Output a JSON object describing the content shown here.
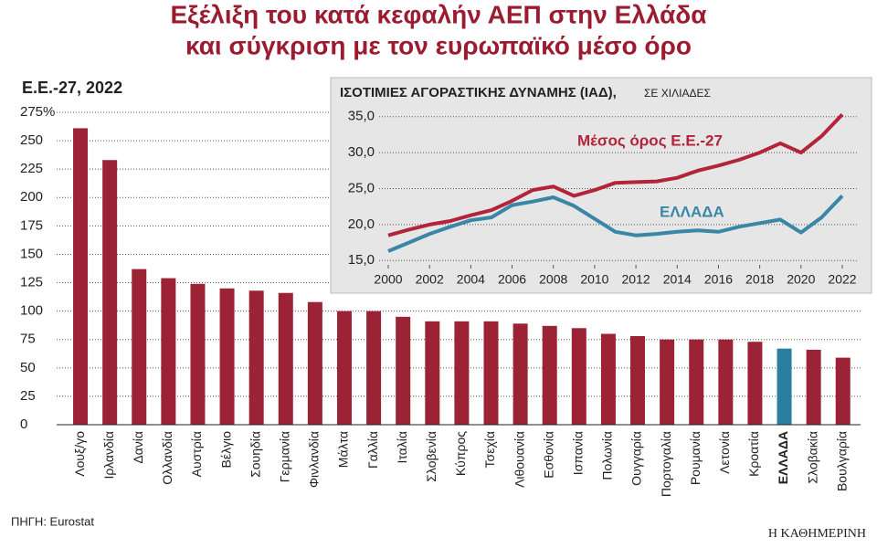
{
  "chart_data": [
    {
      "type": "bar",
      "title": [
        "Εξέλιξη του κατά κεφαλήν ΑΕΠ στην Ελλάδα",
        "και σύγκριση με τον ευρωπαϊκό μέσο όρο"
      ],
      "subtitle": "Ε.Ε.-27, 2022",
      "categories": [
        "Λουξ/γο",
        "Ιρλανδία",
        "Δανία",
        "Ολλανδία",
        "Αυστρία",
        "Βέλγιο",
        "Σουηδία",
        "Γερμανία",
        "Φινλανδία",
        "Μάλτα",
        "Γαλλία",
        "Ιταλία",
        "Σλοβενία",
        "Κύπρος",
        "Τσεχία",
        "Λιθουανία",
        "Εσθονία",
        "Ισπανία",
        "Πολωνία",
        "Ουγγαρία",
        "Πορτογαλία",
        "Ρουμανία",
        "Λετονία",
        "Κροατία",
        "ΕΛΛΑΔΑ",
        "Σλοβακία",
        "Βουλγαρία"
      ],
      "values": [
        261,
        233,
        137,
        129,
        124,
        120,
        118,
        116,
        108,
        100,
        100,
        95,
        91,
        91,
        91,
        89,
        87,
        85,
        80,
        78,
        75,
        75,
        75,
        73,
        67,
        66,
        59
      ],
      "colors": [
        "#9b2335",
        "#9b2335",
        "#9b2335",
        "#9b2335",
        "#9b2335",
        "#9b2335",
        "#9b2335",
        "#9b2335",
        "#9b2335",
        "#9b2335",
        "#9b2335",
        "#9b2335",
        "#9b2335",
        "#9b2335",
        "#9b2335",
        "#9b2335",
        "#9b2335",
        "#9b2335",
        "#9b2335",
        "#9b2335",
        "#9b2335",
        "#9b2335",
        "#9b2335",
        "#9b2335",
        "#2a7fa0",
        "#9b2335",
        "#9b2335"
      ],
      "ylim": [
        0,
        275
      ],
      "yticks": [
        0,
        25,
        50,
        75,
        100,
        125,
        150,
        175,
        200,
        225,
        250,
        {
          "value": 275,
          "label": "275%"
        }
      ],
      "grid": true
    },
    {
      "type": "line",
      "title": "ΙΣΟΤΙΜΙΕΣ ΑΓΟΡΑΣΤΙΚΗΣ ΔΥΝΑΜΗΣ (ΙΑΔ),",
      "subtitle": "ΣΕ ΧΙΛΙΑΔΕΣ",
      "x": [
        2000,
        2001,
        2002,
        2003,
        2004,
        2005,
        2006,
        2007,
        2008,
        2009,
        2010,
        2011,
        2012,
        2013,
        2014,
        2015,
        2016,
        2017,
        2018,
        2019,
        2020,
        2021,
        2022
      ],
      "series": [
        {
          "name": "Μέσος όρος Ε.Ε.-27",
          "color": "#b3243a",
          "values": [
            18.5,
            19.3,
            20.0,
            20.5,
            21.3,
            22.0,
            23.3,
            24.8,
            25.3,
            24.0,
            24.8,
            25.8,
            25.9,
            26.0,
            26.5,
            27.5,
            28.2,
            29.0,
            30.0,
            31.3,
            30.0,
            32.3,
            35.3
          ]
        },
        {
          "name": "ΕΛΛΑΔΑ",
          "color": "#3a86a6",
          "values": [
            16.3,
            17.5,
            18.7,
            19.7,
            20.6,
            21.0,
            22.7,
            23.2,
            23.8,
            22.6,
            20.8,
            19.0,
            18.5,
            18.7,
            19.0,
            19.2,
            19.0,
            19.7,
            20.2,
            20.7,
            18.9,
            21.0,
            24.0
          ]
        }
      ],
      "xlim": [
        2000,
        2022
      ],
      "xticks": [
        2000,
        2002,
        2004,
        2006,
        2008,
        2010,
        2012,
        2014,
        2016,
        2018,
        2020,
        2022
      ],
      "ylim": [
        14.4,
        37
      ],
      "yticks": [
        {
          "value": 15,
          "label": "15,0"
        },
        {
          "value": 20,
          "label": "20,0"
        },
        {
          "value": 25,
          "label": "25,0"
        },
        {
          "value": 30,
          "label": "30,0"
        },
        {
          "value": 35,
          "label": "35,0"
        }
      ],
      "grid": true
    }
  ],
  "source": "ΠΗΓΗ: Eurostat",
  "brand": "Η ΚΑΘΗΜΕΡΙΝΗ"
}
